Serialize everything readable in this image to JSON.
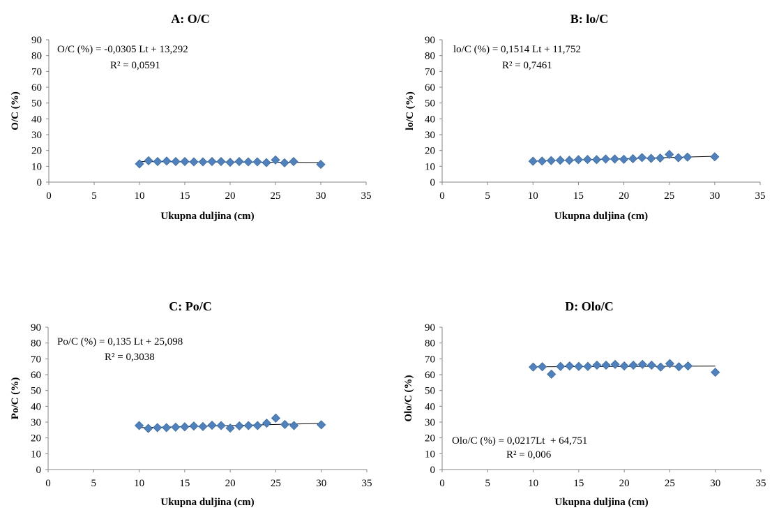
{
  "marker_color": "#4F81BD",
  "marker_edge_color": "#3A6AA5",
  "trendline_color": "#000000",
  "chart_data": [
    {
      "type": "scatter",
      "title": "A: O/C",
      "xlabel": "Ukupna duljina (cm)",
      "ylabel": "O/C (%)",
      "xlim": [
        0,
        35
      ],
      "ylim": [
        0,
        90
      ],
      "xticks": [
        0,
        5,
        10,
        15,
        20,
        25,
        30,
        35
      ],
      "yticks": [
        0,
        10,
        20,
        30,
        40,
        50,
        60,
        70,
        80,
        90
      ],
      "grid": false,
      "equation": "O/C (%) = -0,0305 Lt + 13,292",
      "r_squared": "R² = 0,0591",
      "annotation_position": "top-left",
      "trendline": {
        "slope": -0.0305,
        "intercept": 13.292,
        "x_range": [
          10,
          30
        ]
      },
      "points": [
        [
          10,
          11.5
        ],
        [
          11,
          13.5
        ],
        [
          12,
          13
        ],
        [
          13,
          13.3
        ],
        [
          14,
          13
        ],
        [
          15,
          13
        ],
        [
          16,
          12.8
        ],
        [
          17,
          12.8
        ],
        [
          18,
          13
        ],
        [
          19,
          13
        ],
        [
          20,
          12.5
        ],
        [
          21,
          13
        ],
        [
          22,
          12.8
        ],
        [
          23,
          12.8
        ],
        [
          24,
          12.3
        ],
        [
          25,
          14
        ],
        [
          26,
          12.2
        ],
        [
          27,
          13
        ],
        [
          30,
          11.2
        ]
      ]
    },
    {
      "type": "scatter",
      "title": "B: lo/C",
      "xlabel": "Ukupna duljina (cm)",
      "ylabel": "lo/C (%)",
      "xlim": [
        0,
        35
      ],
      "ylim": [
        0,
        90
      ],
      "xticks": [
        0,
        5,
        10,
        15,
        20,
        25,
        30,
        35
      ],
      "yticks": [
        0,
        10,
        20,
        30,
        40,
        50,
        60,
        70,
        80,
        90
      ],
      "grid": false,
      "equation": "lo/C (%) = 0,1514 Lt + 11,752",
      "r_squared": "R² = 0,7461",
      "annotation_position": "top-left",
      "trendline": {
        "slope": 0.1514,
        "intercept": 11.752,
        "x_range": [
          10,
          30
        ]
      },
      "points": [
        [
          10,
          13.2
        ],
        [
          11,
          13.3
        ],
        [
          12,
          13.6
        ],
        [
          13,
          13.8
        ],
        [
          14,
          13.8
        ],
        [
          15,
          14.2
        ],
        [
          16,
          14.3
        ],
        [
          17,
          14.2
        ],
        [
          18,
          14.6
        ],
        [
          19,
          14.6
        ],
        [
          20,
          14.4
        ],
        [
          21,
          14.8
        ],
        [
          22,
          15.5
        ],
        [
          23,
          15
        ],
        [
          24,
          15.2
        ],
        [
          25,
          17.5
        ],
        [
          26,
          15.4
        ],
        [
          27,
          15.8
        ],
        [
          30,
          16
        ]
      ]
    },
    {
      "type": "scatter",
      "title": "C: Po/C",
      "xlabel": "Ukupna duljina (cm)",
      "ylabel": "Po/C (%)",
      "xlim": [
        0,
        35
      ],
      "ylim": [
        0,
        90
      ],
      "xticks": [
        0,
        5,
        10,
        15,
        20,
        25,
        30,
        35
      ],
      "yticks": [
        0,
        10,
        20,
        30,
        40,
        50,
        60,
        70,
        80,
        90
      ],
      "grid": false,
      "equation": "Po/C (%) = 0,135 Lt + 25,098",
      "r_squared": "R² = 0,3038",
      "annotation_position": "top-left",
      "trendline": {
        "slope": 0.135,
        "intercept": 25.098,
        "x_range": [
          10,
          30
        ]
      },
      "points": [
        [
          10,
          27.8
        ],
        [
          11,
          26
        ],
        [
          12,
          26.5
        ],
        [
          13,
          26.5
        ],
        [
          14,
          26.8
        ],
        [
          15,
          27
        ],
        [
          16,
          27.5
        ],
        [
          17,
          27.2
        ],
        [
          18,
          28
        ],
        [
          19,
          27.8
        ],
        [
          20,
          26.2
        ],
        [
          21,
          27.6
        ],
        [
          22,
          27.8
        ],
        [
          23,
          27.8
        ],
        [
          24,
          29.3
        ],
        [
          25,
          32.5
        ],
        [
          26,
          28.5
        ],
        [
          27,
          27.8
        ],
        [
          30,
          28.3
        ]
      ]
    },
    {
      "type": "scatter",
      "title": "D: Olo/C",
      "xlabel": "Ukupna duljina (cm)",
      "ylabel": "Olo/C (%)",
      "xlim": [
        0,
        35
      ],
      "ylim": [
        0,
        90
      ],
      "xticks": [
        0,
        5,
        10,
        15,
        20,
        25,
        30,
        35
      ],
      "yticks": [
        0,
        10,
        20,
        30,
        40,
        50,
        60,
        70,
        80,
        90
      ],
      "grid": false,
      "equation": "Olo/C (%) = 0,0217Lt  + 64,751",
      "r_squared": "R² = 0,006",
      "annotation_position": "bottom-left",
      "trendline": {
        "slope": 0.0217,
        "intercept": 64.751,
        "x_range": [
          10,
          30
        ]
      },
      "points": [
        [
          10,
          64.8
        ],
        [
          11,
          65
        ],
        [
          12,
          60.3
        ],
        [
          13,
          65.2
        ],
        [
          14,
          65.5
        ],
        [
          15,
          65.2
        ],
        [
          16,
          65.2
        ],
        [
          17,
          66
        ],
        [
          18,
          66
        ],
        [
          19,
          66.5
        ],
        [
          20,
          65.5
        ],
        [
          21,
          66
        ],
        [
          22,
          66.5
        ],
        [
          23,
          66
        ],
        [
          24,
          64.8
        ],
        [
          25,
          67
        ],
        [
          26,
          65
        ],
        [
          27,
          65.5
        ],
        [
          30,
          61.5
        ]
      ]
    }
  ]
}
